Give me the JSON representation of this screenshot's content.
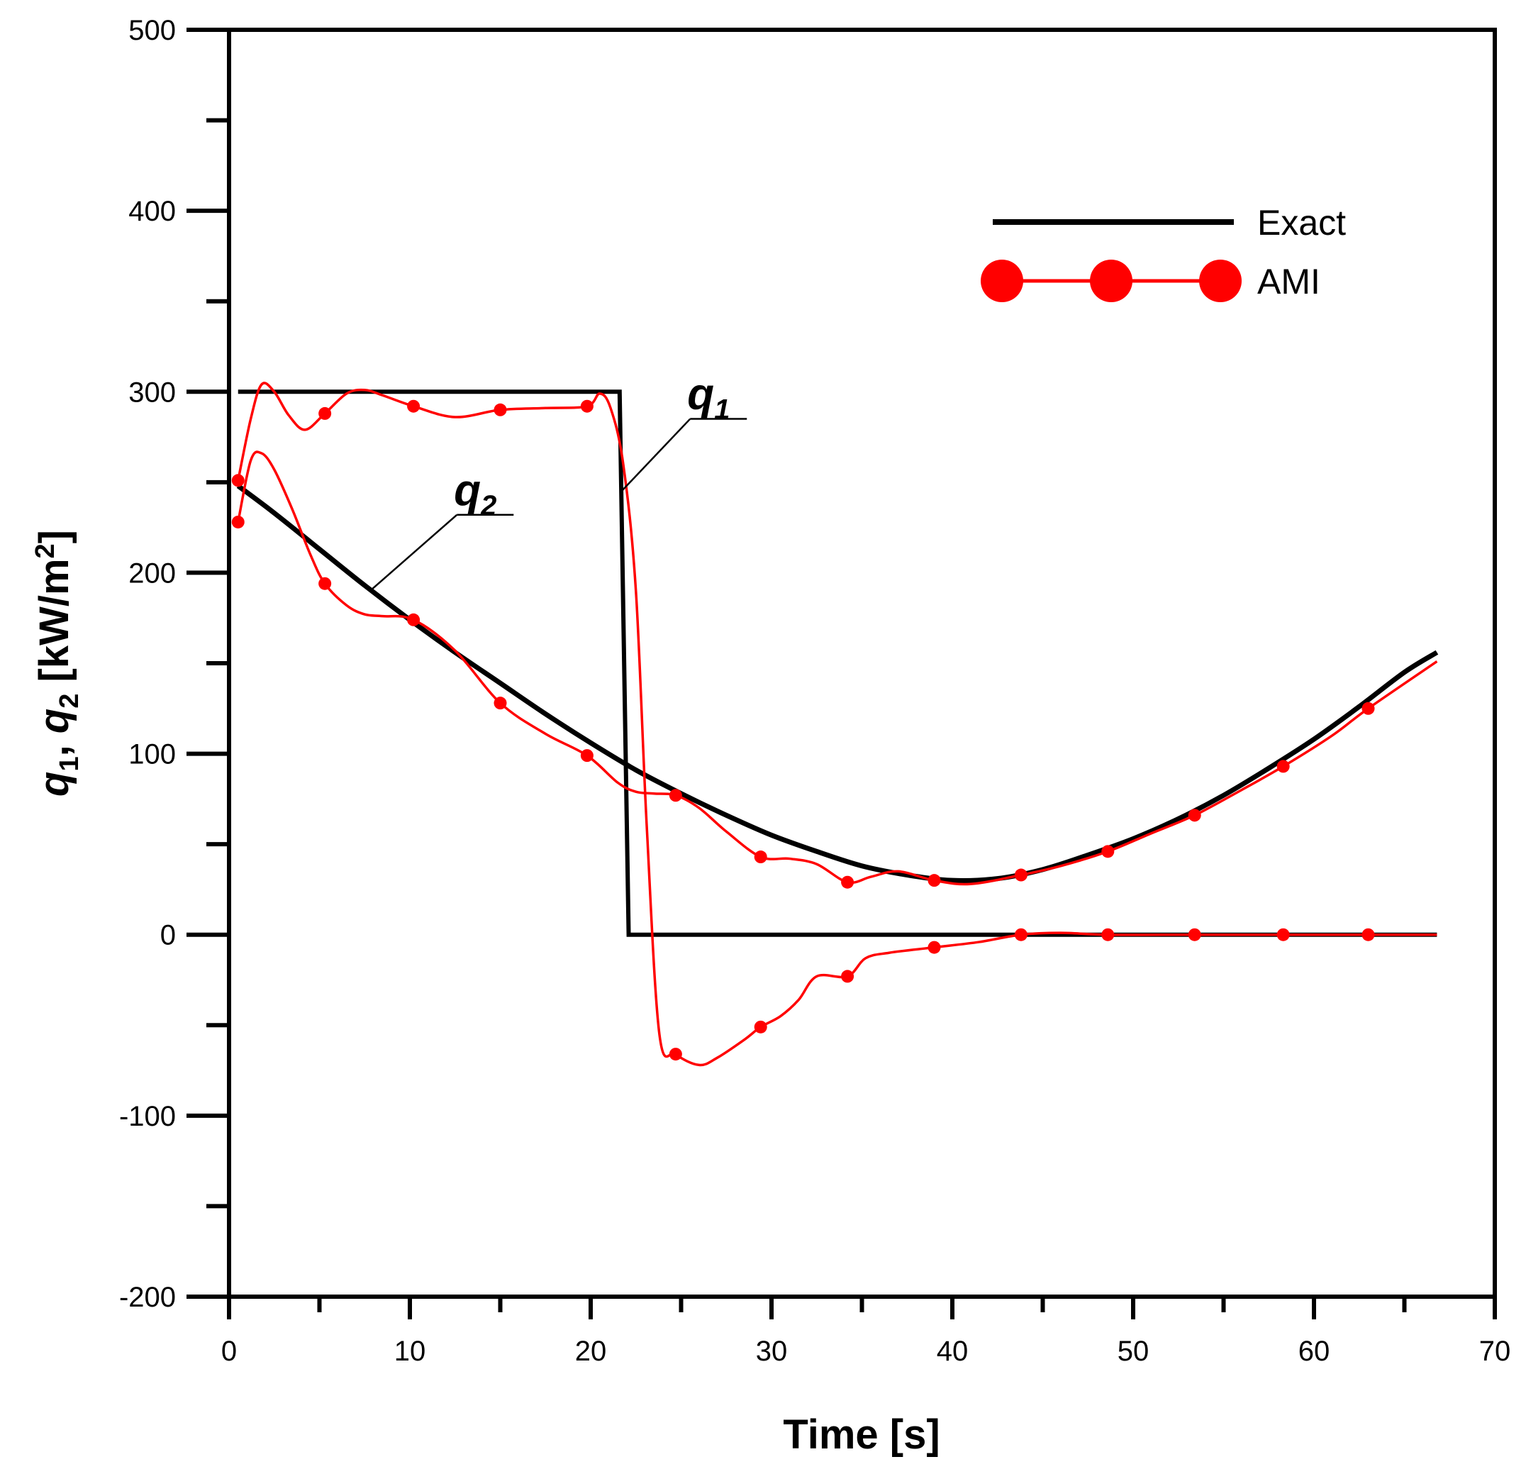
{
  "chart_data": {
    "type": "line",
    "title": "",
    "xlabel": "Time [s]",
    "ylabel_parts": [
      "q",
      "1",
      ", ",
      "q",
      "2",
      " [kW/m",
      "2",
      "]"
    ],
    "xlim": [
      0,
      70
    ],
    "ylim": [
      -200,
      500
    ],
    "x_ticks": [
      0,
      10,
      20,
      30,
      40,
      50,
      60,
      70
    ],
    "y_ticks": [
      -200,
      -100,
      0,
      100,
      200,
      300,
      400,
      500
    ],
    "x_tick_labels": [
      "0",
      "10",
      "20",
      "30",
      "40",
      "50",
      "60",
      "70"
    ],
    "y_tick_labels": [
      "-200",
      "-100",
      "0",
      "100",
      "200",
      "300",
      "400",
      "500"
    ],
    "legend": {
      "position": "top-right",
      "entries": [
        {
          "label": "Exact",
          "style": "line",
          "color": "#000000"
        },
        {
          "label": "AMI",
          "style": "line-markers",
          "color": "#ff0000"
        }
      ]
    },
    "annotations": [
      {
        "base": "q",
        "sub": "1",
        "target": "q1-exact",
        "anchor_x": 21.7,
        "anchor_y": 245,
        "label_x": 25.5,
        "label_y": 285
      },
      {
        "base": "q",
        "sub": "2",
        "target": "q2-exact",
        "anchor_x": 7.8,
        "anchor_y": 190,
        "label_x": 12.6,
        "label_y": 232
      }
    ],
    "series": [
      {
        "name": "q1 Exact",
        "key": "q1-exact",
        "color": "#000000",
        "x": [
          0.5,
          21.6,
          22.1,
          66.8
        ],
        "y": [
          300,
          300,
          0,
          0
        ]
      },
      {
        "name": "q2 Exact",
        "key": "q2-exact",
        "color": "#000000",
        "x": [
          0.5,
          2.5,
          5,
          7.5,
          10,
          12.5,
          15,
          17.5,
          20,
          22.5,
          25,
          27.5,
          30,
          32.5,
          35,
          37.5,
          40,
          42.5,
          45,
          47.5,
          50,
          52.5,
          55,
          57.5,
          60,
          62.5,
          65,
          66.8
        ],
        "y": [
          248,
          233,
          213,
          193,
          174,
          156,
          139,
          122,
          106,
          91,
          78,
          66,
          55,
          46,
          38,
          33,
          30,
          31,
          36,
          44,
          53,
          64,
          77,
          92,
          108,
          126,
          145,
          156
        ]
      },
      {
        "name": "q1 AMI",
        "key": "q1-ami",
        "color": "#ff0000",
        "x": [
          0.5,
          1.2,
          1.8,
          2.5,
          3.3,
          4.2,
          5.3,
          6.5,
          7.5,
          8.5,
          10.2,
          12.5,
          15,
          17.5,
          19.8,
          20.5,
          21.1,
          21.8,
          22.5,
          23.1,
          23.8,
          24.7,
          26,
          27,
          28.5,
          29.4,
          30.5,
          31.5,
          32.5,
          34.2,
          35.2,
          36.5,
          39,
          41.5,
          43.8,
          46,
          48.6,
          53.4,
          58.3,
          63,
          66.8
        ],
        "y": [
          251,
          285,
          304,
          300,
          287,
          279,
          288,
          299,
          301,
          298,
          292,
          286,
          290,
          291,
          292,
          299,
          291,
          260,
          190,
          60,
          -55,
          -66,
          -72,
          -68,
          -58,
          -51,
          -45,
          -36,
          -23,
          -23,
          -13,
          -10,
          -7,
          -4,
          0,
          1,
          0,
          0,
          0,
          0,
          0
        ]
      },
      {
        "name": "q2 AMI",
        "key": "q2-ami",
        "color": "#ff0000",
        "x": [
          0.5,
          1.2,
          1.8,
          2.5,
          3.5,
          4.5,
          5.3,
          6.5,
          7.5,
          8.5,
          10.2,
          12.5,
          15,
          17.5,
          19.8,
          21.5,
          22.5,
          23.5,
          24.7,
          26,
          27.5,
          29.4,
          31,
          32.5,
          34.2,
          35.5,
          37,
          39,
          41,
          43.8,
          46,
          48.6,
          51,
          53.4,
          56,
          58.3,
          61,
          63,
          66.8
        ],
        "y": [
          228,
          262,
          266,
          257,
          235,
          210,
          194,
          182,
          177,
          176,
          174,
          157,
          128,
          111,
          99,
          84,
          79,
          78,
          77,
          70,
          57,
          43,
          42,
          39,
          29,
          32,
          35,
          30,
          28,
          33,
          38,
          46,
          56,
          66,
          80,
          93,
          110,
          125,
          151
        ]
      }
    ],
    "marker_indices": {
      "q1-ami": [
        0,
        6,
        10,
        12,
        14,
        21,
        25,
        29,
        32,
        34,
        36,
        37,
        38,
        39
      ],
      "q2-ami": [
        0,
        6,
        10,
        12,
        14,
        18,
        21,
        24,
        27,
        29,
        31,
        33,
        35,
        37
      ]
    }
  }
}
